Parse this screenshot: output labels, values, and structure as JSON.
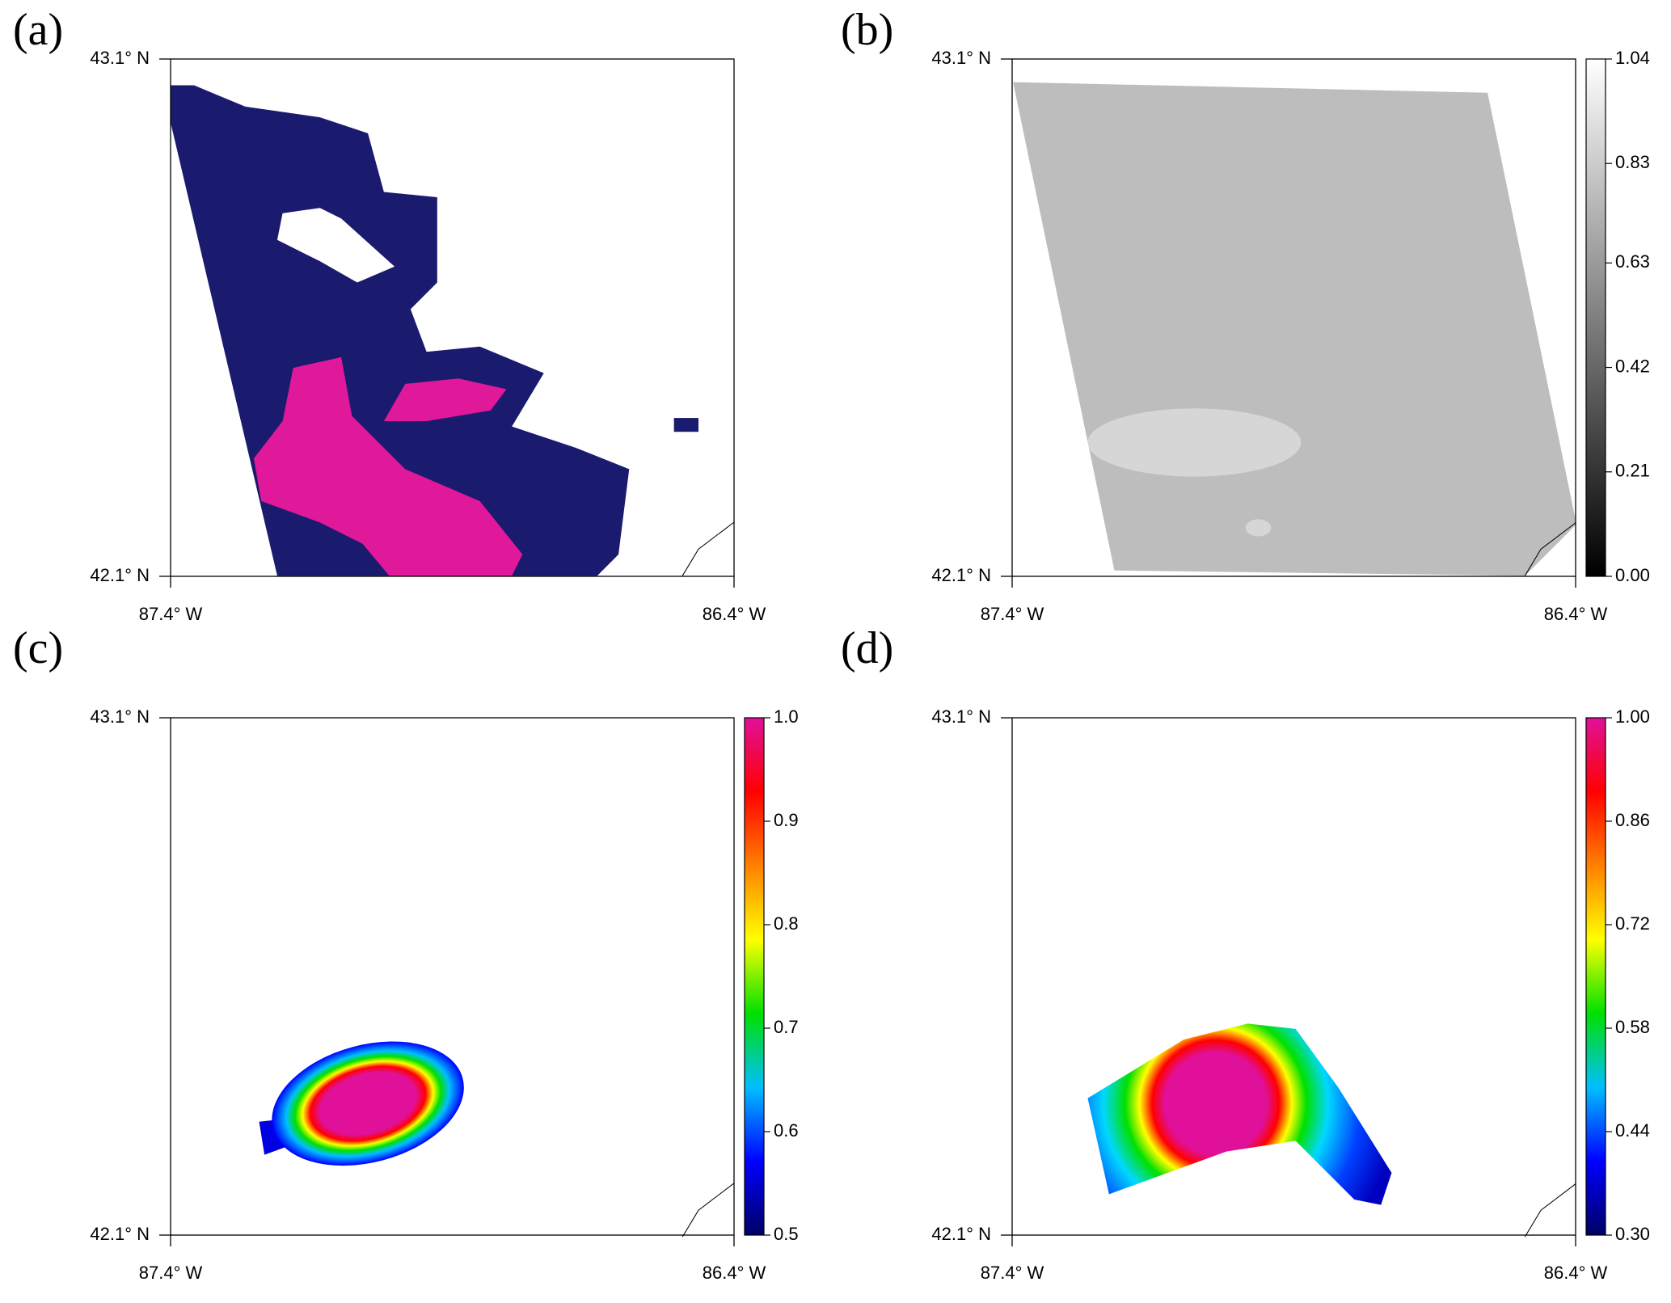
{
  "panels": [
    {
      "label": "(a)",
      "lat_labels": [
        "43.1° N",
        "42.1° N"
      ],
      "lon_labels": [
        "87.4° W",
        "86.4° W"
      ]
    },
    {
      "label": "(b)",
      "lat_labels": [
        "43.1° N",
        "42.1° N"
      ],
      "lon_labels": [
        "87.4° W",
        "86.4° W"
      ],
      "colorbar": {
        "lim": [
          0,
          1.04
        ],
        "ticks": [
          {
            "value": 0,
            "label": "0.00"
          },
          0.21,
          0.42,
          0.63,
          0.83,
          1.04
        ],
        "colors": [
          "#000000",
          "#ffffff"
        ]
      }
    },
    {
      "label": "(c)",
      "lat_labels": [
        "43.1° N",
        "42.1° N"
      ],
      "lon_labels": [
        "87.4° W",
        "86.4° W"
      ],
      "colorbar": {
        "lim": [
          0.5,
          1.0
        ],
        "ticks": [
          0.5,
          0.6,
          0.7,
          0.8,
          0.9,
          {
            "value": 1,
            "label": "1.0"
          }
        ],
        "colors": [
          "#000066",
          "#0000ff",
          "#00bfff",
          "#00e000",
          "#ffff00",
          "#ff8000",
          "#ff0000",
          "#e0109a"
        ]
      }
    },
    {
      "label": "(d)",
      "lat_labels": [
        "43.1° N",
        "42.1° N"
      ],
      "lon_labels": [
        "87.4° W",
        "86.4° W"
      ],
      "colorbar": {
        "lim": [
          0.3,
          1.0
        ],
        "ticks": [
          {
            "value": 0.3,
            "label": "0.30"
          },
          0.44,
          0.58,
          0.72,
          0.86,
          {
            "value": 1,
            "label": "1.00"
          }
        ],
        "colors": [
          "#000066",
          "#0000ff",
          "#00bfff",
          "#00e000",
          "#ffff00",
          "#ff8000",
          "#ff0000",
          "#e0109a"
        ]
      }
    }
  ]
}
